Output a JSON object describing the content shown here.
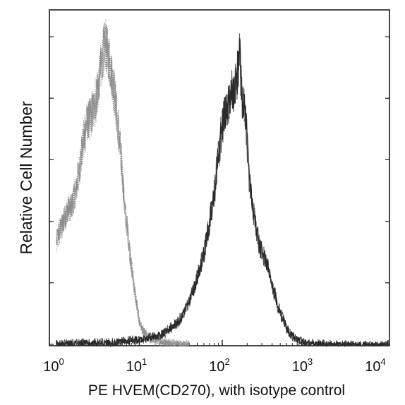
{
  "chart_data": {
    "type": "histogram",
    "xlabel": "PE HVEM(CD270), with isotype control",
    "ylabel": "Relative Cell Number",
    "x_scale": "log",
    "xlim": [
      1,
      10000
    ],
    "ylim": [
      0,
      1
    ],
    "x_ticks": [
      {
        "base": "10",
        "exp": "0",
        "value": 1
      },
      {
        "base": "10",
        "exp": "1",
        "value": 10
      },
      {
        "base": "10",
        "exp": "2",
        "value": 100
      },
      {
        "base": "10",
        "exp": "3",
        "value": 1000
      },
      {
        "base": "10",
        "exp": "4",
        "value": 10000
      }
    ],
    "grid": false,
    "series": [
      {
        "style": "dotted",
        "color": "#8a8a8a",
        "x": [
          1.0,
          1.1,
          1.2,
          1.35,
          1.5,
          1.7,
          1.9,
          2.1,
          2.3,
          2.6,
          2.9,
          3.2,
          3.5,
          3.8,
          4.1,
          4.5,
          5.0,
          5.5,
          6.0,
          6.6,
          7.3,
          8.0,
          9.0,
          10.0,
          11.0,
          12.5,
          14.0,
          17.0,
          20.0,
          25.0,
          30.0,
          40.0
        ],
        "y": [
          0.34,
          0.38,
          0.4,
          0.44,
          0.45,
          0.5,
          0.58,
          0.66,
          0.72,
          0.75,
          0.78,
          0.85,
          0.92,
          0.98,
          0.96,
          0.9,
          0.82,
          0.72,
          0.62,
          0.46,
          0.36,
          0.26,
          0.16,
          0.08,
          0.05,
          0.03,
          0.02,
          0.015,
          0.01,
          0.008,
          0.006,
          0.004
        ]
      },
      {
        "style": "solid-noisy",
        "color": "#2a2a2a",
        "x": [
          1.0,
          2.0,
          5.0,
          10.0,
          20.0,
          30.0,
          40.0,
          50.0,
          60.0,
          70.0,
          80.0,
          90.0,
          100.0,
          115.0,
          130.0,
          150.0,
          160.0,
          175.0,
          190.0,
          210.0,
          240.0,
          270.0,
          300.0,
          340.0,
          380.0,
          420.0,
          480.0,
          550.0,
          650.0,
          800.0,
          1000.0,
          1300.0,
          2000.0,
          4000.0,
          10000.0
        ],
        "y": [
          0.005,
          0.008,
          0.01,
          0.02,
          0.04,
          0.08,
          0.14,
          0.22,
          0.3,
          0.4,
          0.5,
          0.62,
          0.72,
          0.78,
          0.82,
          0.85,
          0.96,
          0.8,
          0.74,
          0.56,
          0.42,
          0.35,
          0.3,
          0.27,
          0.22,
          0.18,
          0.12,
          0.08,
          0.04,
          0.02,
          0.01,
          0.006,
          0.004,
          0.002,
          0.001
        ]
      }
    ]
  }
}
